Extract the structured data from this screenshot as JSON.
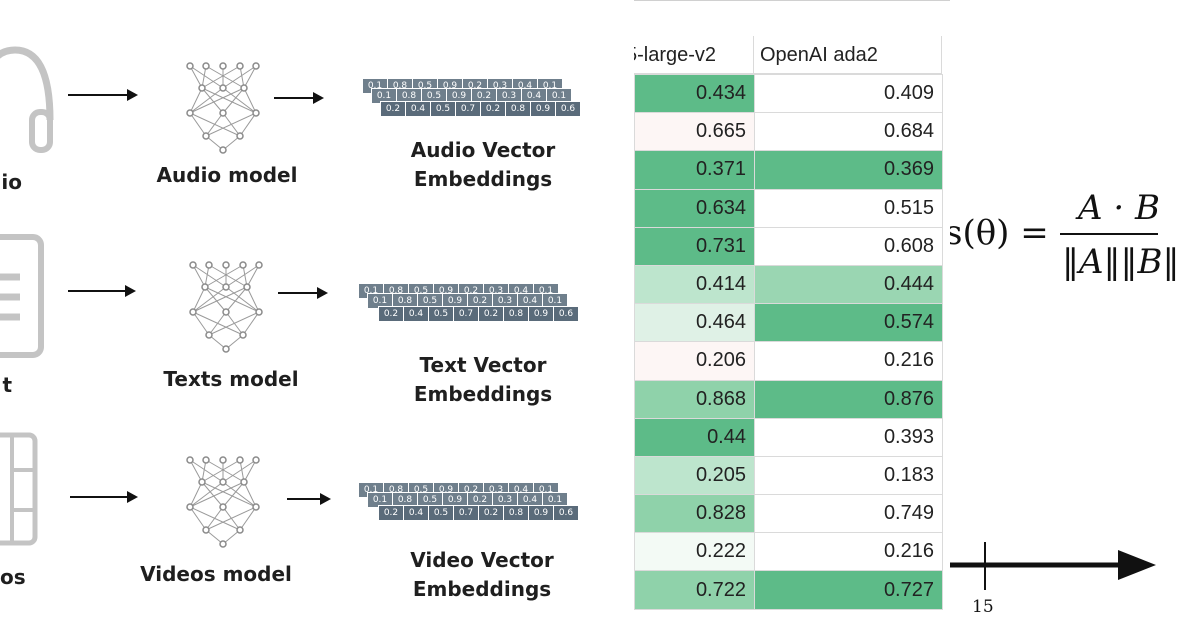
{
  "rows": [
    {
      "source_label": "io",
      "model_label": "Audio model",
      "emb_label_1": "Audio Vector",
      "emb_label_2": "Embeddings"
    },
    {
      "source_label": "t",
      "model_label": "Texts model",
      "emb_label_1": "Text Vector",
      "emb_label_2": "Embeddings"
    },
    {
      "source_label": "os",
      "model_label": "Videos model",
      "emb_label_1": "Video Vector",
      "emb_label_2": "Embeddings"
    }
  ],
  "vector_front": [
    "0.2",
    "0.4",
    "0.5",
    "0.7",
    "0.2",
    "0.8",
    "0.9",
    "0.6"
  ],
  "vector_back": [
    "0.1",
    "0.8",
    "0.5",
    "0.9",
    "0.2",
    "0.3",
    "0.4",
    "0.1"
  ],
  "table": {
    "col1_header": "5-large-v2",
    "col2_header": "OpenAI ada2",
    "rows": [
      {
        "a": "0.434",
        "b": "0.409",
        "a_bg": "#5dbb88",
        "b_bg": "#ffffff"
      },
      {
        "a": "0.665",
        "b": "0.684",
        "a_bg": "#fdf6f5",
        "b_bg": "#ffffff"
      },
      {
        "a": "0.371",
        "b": "0.369",
        "a_bg": "#5dbb88",
        "b_bg": "#5dbb88"
      },
      {
        "a": "0.634",
        "b": "0.515",
        "a_bg": "#5dbb88",
        "b_bg": "#ffffff"
      },
      {
        "a": "0.731",
        "b": "0.608",
        "a_bg": "#5dbb88",
        "b_bg": "#ffffff"
      },
      {
        "a": "0.414",
        "b": "0.444",
        "a_bg": "#bde5cd",
        "b_bg": "#9ad6b2"
      },
      {
        "a": "0.464",
        "b": "0.574",
        "a_bg": "#dff1e6",
        "b_bg": "#5dbb88"
      },
      {
        "a": "0.206",
        "b": "0.216",
        "a_bg": "#fdf6f5",
        "b_bg": "#ffffff"
      },
      {
        "a": "0.868",
        "b": "0.876",
        "a_bg": "#8fd2aa",
        "b_bg": "#5dbb88"
      },
      {
        "a": "0.44",
        "b": "0.393",
        "a_bg": "#5dbb88",
        "b_bg": "#ffffff"
      },
      {
        "a": "0.205",
        "b": "0.183",
        "a_bg": "#bde5cd",
        "b_bg": "#ffffff"
      },
      {
        "a": "0.828",
        "b": "0.749",
        "a_bg": "#8fd2aa",
        "b_bg": "#ffffff"
      },
      {
        "a": "0.222",
        "b": "0.216",
        "a_bg": "#f3faf5",
        "b_bg": "#ffffff"
      },
      {
        "a": "0.722",
        "b": "0.727",
        "a_bg": "#8fd2aa",
        "b_bg": "#5dbb88"
      }
    ]
  },
  "formula": {
    "lhs": "s(θ) =",
    "numerator": "A · B",
    "denominator": "‖A‖‖B‖",
    "axis_tick": "15"
  }
}
